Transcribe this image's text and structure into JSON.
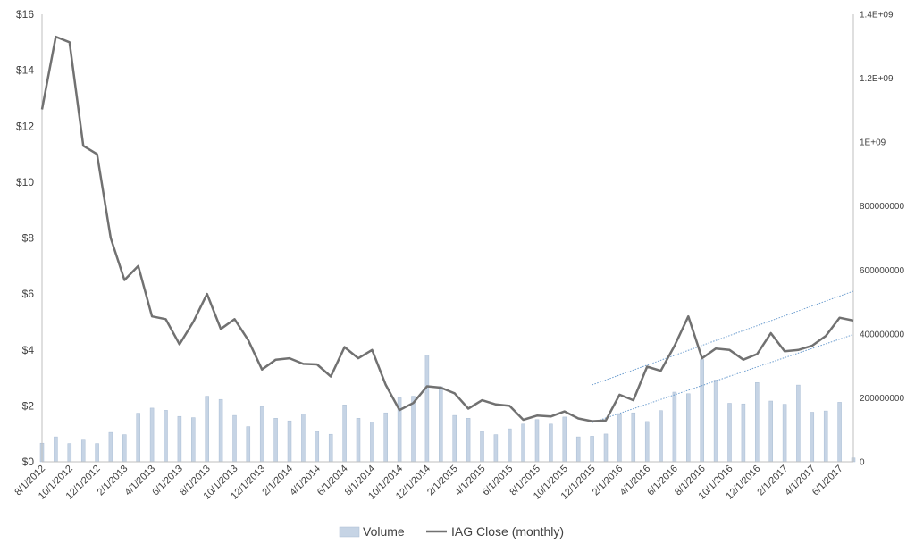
{
  "colors": {
    "volume_fill": "#c6d4e5",
    "volume_stroke": "#a9bcd3",
    "close_line": "#717171",
    "trend_line": "#6f9fd0",
    "axis": "#bfbfbf",
    "text": "#404040"
  },
  "chart_data": {
    "type": "bar+line",
    "title": "",
    "grid": false,
    "legend_position": "bottom",
    "legend": [
      {
        "name": "Volume",
        "marker": "bar"
      },
      {
        "name": "IAG Close (monthly)",
        "marker": "line"
      }
    ],
    "x_tick_labels": [
      "8/1/2012",
      "10/1/2012",
      "12/1/2012",
      "2/1/2013",
      "4/1/2013",
      "6/1/2013",
      "8/1/2013",
      "10/1/2013",
      "12/1/2013",
      "2/1/2014",
      "4/1/2014",
      "6/1/2014",
      "8/1/2014",
      "10/1/2014",
      "12/1/2014",
      "2/1/2015",
      "4/1/2015",
      "6/1/2015",
      "8/1/2015",
      "10/1/2015",
      "12/1/2015",
      "2/1/2016",
      "4/1/2016",
      "6/1/2016",
      "8/1/2016",
      "10/1/2016",
      "12/1/2016",
      "2/1/2017",
      "4/1/2017",
      "6/1/2017"
    ],
    "y_left": {
      "min": 0,
      "max": 16,
      "ticks": [
        "$0",
        "$2",
        "$4",
        "$6",
        "$8",
        "$10",
        "$12",
        "$14",
        "$16"
      ]
    },
    "y_right": {
      "min": 0,
      "max": 1400000000,
      "ticks": [
        "0",
        "200000000",
        "400000000",
        "600000000",
        "800000000",
        "1E+09",
        "1.2E+09",
        "1.4E+09"
      ]
    },
    "categories": [
      "2012-08",
      "2012-09",
      "2012-10",
      "2012-11",
      "2012-12",
      "2013-01",
      "2013-02",
      "2013-03",
      "2013-04",
      "2013-05",
      "2013-06",
      "2013-07",
      "2013-08",
      "2013-09",
      "2013-10",
      "2013-11",
      "2013-12",
      "2014-01",
      "2014-02",
      "2014-03",
      "2014-04",
      "2014-05",
      "2014-06",
      "2014-07",
      "2014-08",
      "2014-09",
      "2014-10",
      "2014-11",
      "2014-12",
      "2015-01",
      "2015-02",
      "2015-03",
      "2015-04",
      "2015-05",
      "2015-06",
      "2015-07",
      "2015-08",
      "2015-09",
      "2015-10",
      "2015-11",
      "2015-12",
      "2016-01",
      "2016-02",
      "2016-03",
      "2016-04",
      "2016-05",
      "2016-06",
      "2016-07",
      "2016-08",
      "2016-09",
      "2016-10",
      "2016-11",
      "2016-12",
      "2017-01",
      "2017-02",
      "2017-03",
      "2017-04",
      "2017-05",
      "2017-06",
      "2017-07"
    ],
    "series": [
      {
        "name": "Volume",
        "axis": "right",
        "type": "bar",
        "values": [
          58000000,
          78000000,
          57000000,
          68000000,
          57000000,
          92000000,
          85000000,
          152000000,
          168000000,
          161000000,
          142000000,
          138000000,
          205000000,
          195000000,
          145000000,
          110000000,
          172000000,
          136000000,
          128000000,
          150000000,
          95000000,
          86000000,
          178000000,
          136000000,
          124000000,
          153000000,
          200000000,
          205000000,
          333000000,
          235000000,
          145000000,
          136000000,
          95000000,
          85000000,
          103000000,
          118000000,
          132000000,
          118000000,
          140000000,
          78000000,
          80000000,
          87000000,
          148000000,
          153000000,
          126000000,
          160000000,
          218000000,
          213000000,
          320000000,
          256000000,
          183000000,
          181000000,
          248000000,
          190000000,
          180000000,
          240000000,
          155000000,
          159000000,
          186000000,
          12000000
        ]
      },
      {
        "name": "IAG Close (monthly)",
        "axis": "left",
        "type": "line",
        "values": [
          12.6,
          15.2,
          15.0,
          11.3,
          11.0,
          8.0,
          6.5,
          7.0,
          5.2,
          5.1,
          4.2,
          5.0,
          6.0,
          4.75,
          5.1,
          4.35,
          3.3,
          3.65,
          3.7,
          3.5,
          3.48,
          3.05,
          4.1,
          3.7,
          4.0,
          2.75,
          1.85,
          2.1,
          2.7,
          2.65,
          2.45,
          1.9,
          2.2,
          2.05,
          2.0,
          1.5,
          1.65,
          1.62,
          1.8,
          1.55,
          1.45,
          1.48,
          2.4,
          2.2,
          3.4,
          3.25,
          4.15,
          5.2,
          3.7,
          4.05,
          4.0,
          3.65,
          3.85,
          4.6,
          3.95,
          4.0,
          4.15,
          4.5,
          5.15,
          5.05
        ]
      }
    ],
    "trendlines": [
      {
        "from": {
          "x": "2015-12",
          "y": 2.75
        },
        "to": {
          "x": "2017-07",
          "y": 6.1
        }
      },
      {
        "from": {
          "x": "2015-12",
          "y": 1.4
        },
        "to": {
          "x": "2017-07",
          "y": 4.55
        }
      }
    ]
  }
}
